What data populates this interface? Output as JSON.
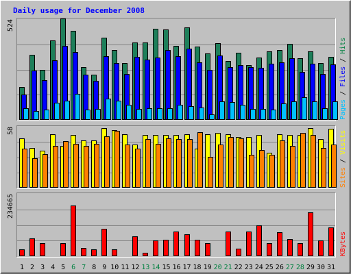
{
  "chart_data": {
    "type": "bar",
    "title": "Daily usage for December 2008",
    "categories": [
      "1",
      "2",
      "3",
      "4",
      "5",
      "6",
      "7",
      "8",
      "9",
      "10",
      "11",
      "12",
      "13",
      "14",
      "15",
      "16",
      "17",
      "18",
      "19",
      "20",
      "21",
      "22",
      "23",
      "24",
      "25",
      "26",
      "27",
      "28",
      "29",
      "30",
      "31"
    ],
    "weekend_days": [
      "6",
      "7",
      "13",
      "14",
      "20",
      "21",
      "27",
      "28"
    ],
    "panels": [
      {
        "id": "hits-files-pages",
        "axis_max": 524,
        "axis_label": "524",
        "side_labels": [
          {
            "text": "Pages",
            "color": "#00c0ff"
          },
          {
            "text": " / ",
            "color": "#000000"
          },
          {
            "text": "Files",
            "color": "#0000ff"
          },
          {
            "text": " / ",
            "color": "#000000"
          },
          {
            "text": "Hits",
            "color": "#008040"
          }
        ],
        "series": [
          {
            "name": "Hits",
            "color": "#1e7f5a",
            "values": [
              172,
              338,
              260,
              415,
              527,
              465,
              276,
              235,
              428,
              365,
              295,
              403,
              404,
              474,
              470,
              385,
              482,
              382,
              345,
              398,
              305,
              350,
              285,
              325,
              358,
              364,
              396,
              322,
              357,
              295,
              328
            ]
          },
          {
            "name": "Files",
            "color": "#0000ff",
            "values": [
              132,
              258,
              208,
              310,
              385,
              353,
              234,
              202,
              330,
              295,
              240,
              328,
              312,
              325,
              364,
              330,
              371,
              300,
              260,
              335,
              275,
              285,
              275,
              270,
              293,
              300,
              322,
              250,
              293,
              240,
              288
            ]
          },
          {
            "name": "Pages",
            "color": "#00c0ff",
            "values": [
              62,
              45,
              55,
              90,
              100,
              135,
              55,
              57,
              110,
              100,
              78,
              58,
              62,
              62,
              60,
              78,
              73,
              65,
              30,
              98,
              92,
              78,
              58,
              58,
              54,
              85,
              95,
              118,
              95,
              60,
              95
            ]
          }
        ]
      },
      {
        "id": "visits-sites",
        "axis_max": 58,
        "axis_label": "58",
        "side_labels": [
          {
            "text": "Sites",
            "color": "#ff8000"
          },
          {
            "text": " / ",
            "color": "#000000"
          },
          {
            "text": "Visits",
            "color": "#ffff00"
          }
        ],
        "series": [
          {
            "name": "Visits",
            "color": "#ffff00",
            "values": [
              47,
              38,
              35,
              51,
              40,
              50,
              45,
              45,
              57,
              55,
              51,
              41,
              50,
              50,
              50,
              50,
              51,
              37,
              51,
              52,
              51,
              48,
              48,
              50,
              33,
              51,
              50,
              50,
              57,
              46,
              56
            ]
          },
          {
            "name": "Sites",
            "color": "#ff8000",
            "values": [
              37,
              28,
              32,
              40,
              44,
              42,
              40,
              42,
              49,
              54,
              41,
              37,
              46,
              42,
              47,
              46,
              46,
              53,
              29,
              41,
              48,
              47,
              31,
              36,
              31,
              45,
              40,
              52,
              50,
              38,
              41
            ]
          }
        ]
      },
      {
        "id": "kbytes",
        "axis_max": 234665,
        "axis_label": "234665",
        "side_labels": [
          {
            "text": "KBytes",
            "color": "#ff0000"
          }
        ],
        "series": [
          {
            "name": "KBytes",
            "color": "#ff0000",
            "values": [
              25000,
              66000,
              50000,
              3500,
              50000,
              190000,
              32000,
              25000,
              102000,
              25000,
              3500,
              75000,
              14000,
              60000,
              62000,
              93000,
              82000,
              62000,
              50000,
              2500,
              92000,
              28000,
              92000,
              115000,
              50000,
              90000,
              65000,
              50000,
              165000,
              60000,
              108000
            ]
          }
        ]
      }
    ]
  }
}
